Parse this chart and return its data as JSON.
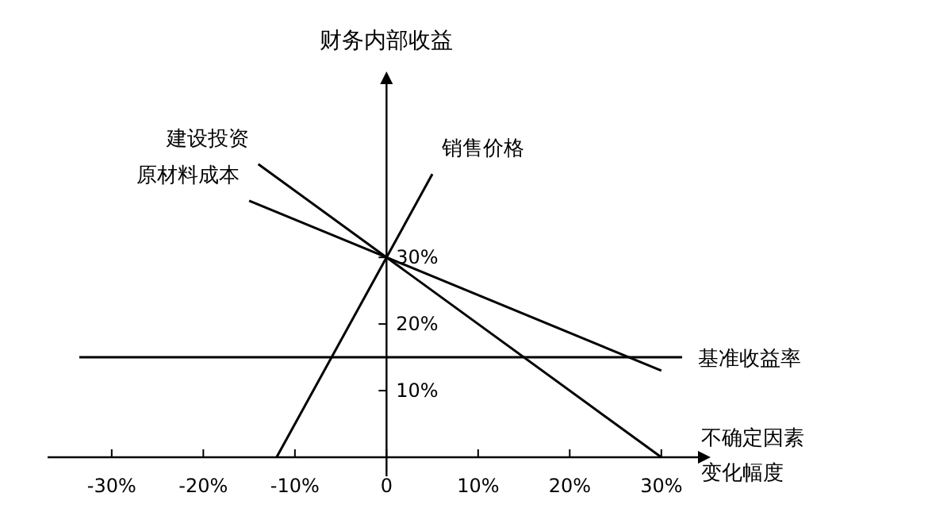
{
  "chart_data": {
    "type": "line",
    "ylabel": "财务内部收益",
    "xlabel": "不确定因素变化幅度",
    "xlim": [
      -37,
      34
    ],
    "ylim": [
      0,
      56
    ],
    "xticks": [
      {
        "value": -30,
        "label": "-30%"
      },
      {
        "value": -20,
        "label": "-20%"
      },
      {
        "value": -10,
        "label": "-10%"
      },
      {
        "value": 0,
        "label": "0"
      },
      {
        "value": 10,
        "label": "10%"
      },
      {
        "value": 20,
        "label": "20%"
      },
      {
        "value": 30,
        "label": "30%"
      }
    ],
    "yticks": [
      {
        "value": 10,
        "label": "10%"
      },
      {
        "value": 20,
        "label": "20%"
      },
      {
        "value": 30,
        "label": "30%"
      }
    ],
    "series": [
      {
        "name": "建设投资",
        "color": "#000000",
        "x": [
          -14,
          0,
          30
        ],
        "values": [
          44,
          30,
          0
        ]
      },
      {
        "name": "销售价格",
        "color": "#000000",
        "x": [
          -12,
          0,
          5
        ],
        "values": [
          0,
          30,
          42.5
        ]
      },
      {
        "name": "原材料成本",
        "color": "#000000",
        "x": [
          -15,
          0,
          30
        ],
        "values": [
          38.5,
          30,
          13
        ]
      }
    ],
    "ref_lines": [
      {
        "axis": "y",
        "value": 15,
        "label": "基准收益率",
        "color": "#000000"
      }
    ],
    "grid": false,
    "marker": "none",
    "line_style": "solid"
  }
}
